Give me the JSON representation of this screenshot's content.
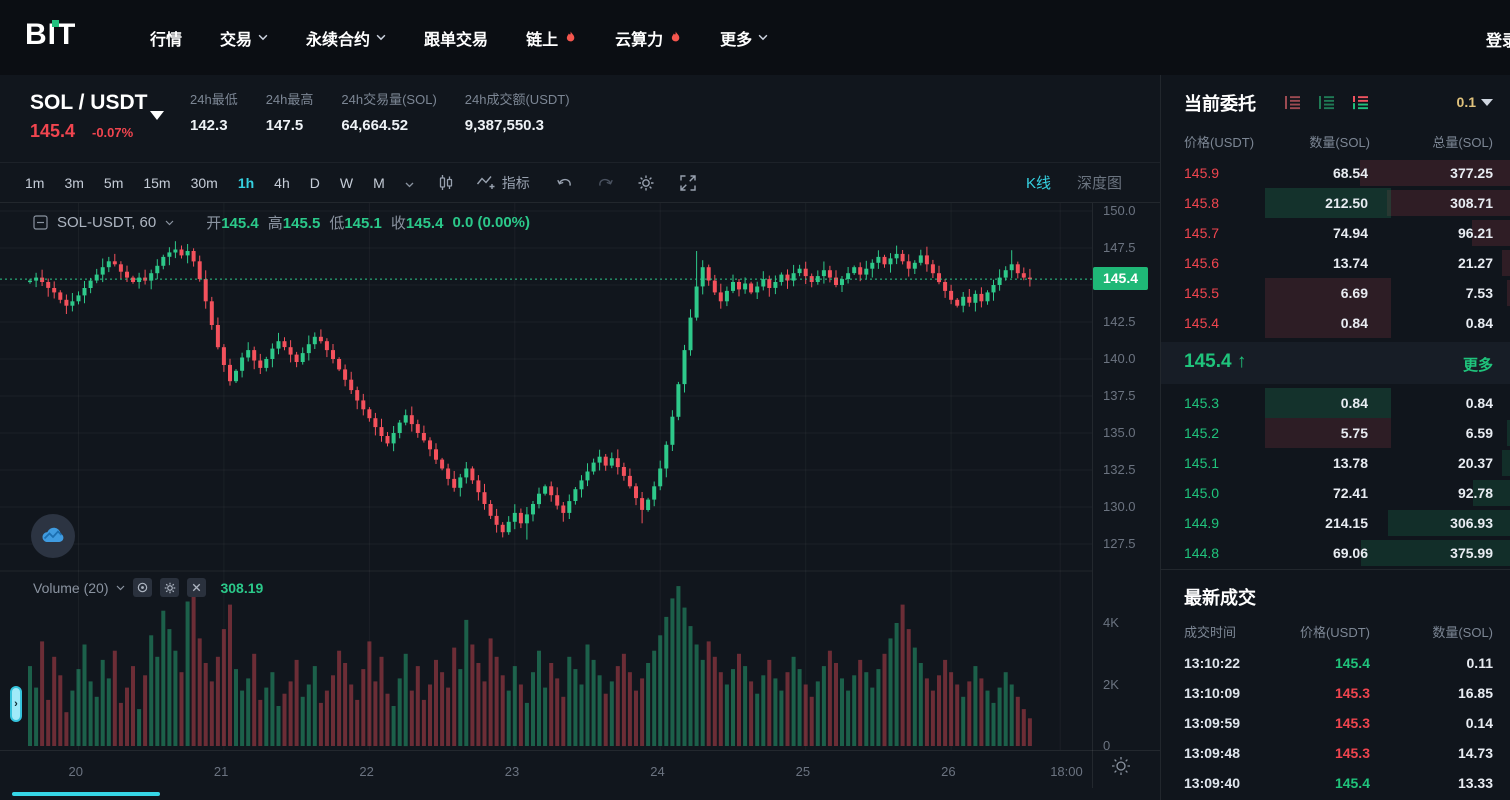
{
  "nav": {
    "logo": "BIT",
    "items": [
      {
        "label": "行情",
        "chevron": false,
        "fire": false
      },
      {
        "label": "交易",
        "chevron": true,
        "fire": false
      },
      {
        "label": "永续合约",
        "chevron": true,
        "fire": false
      },
      {
        "label": "跟单交易",
        "chevron": false,
        "fire": false
      },
      {
        "label": "链上",
        "chevron": false,
        "fire": true
      },
      {
        "label": "云算力",
        "chevron": false,
        "fire": true
      },
      {
        "label": "更多",
        "chevron": true,
        "fire": false
      }
    ],
    "login_label": "登录"
  },
  "header": {
    "pair": "SOL / USDT",
    "price": "145.4",
    "change": "-0.07%",
    "stats": [
      {
        "label": "24h最低",
        "value": "142.3"
      },
      {
        "label": "24h最高",
        "value": "147.5"
      },
      {
        "label": "24h交易量(SOL)",
        "value": "64,664.52"
      },
      {
        "label": "24h成交额(USDT)",
        "value": "9,387,550.3"
      }
    ]
  },
  "toolbar": {
    "timeframes": [
      "1m",
      "3m",
      "5m",
      "15m",
      "30m",
      "1h",
      "4h",
      "D",
      "W",
      "M"
    ],
    "active_timeframe": "1h",
    "indicator_label": "指标",
    "right_tabs": [
      {
        "label": "K线",
        "active": true
      },
      {
        "label": "深度图",
        "active": false
      }
    ]
  },
  "chart": {
    "legend": {
      "symbol": "SOL-USDT, 60",
      "o_label": "开",
      "o": "145.4",
      "h_label": "高",
      "h": "145.5",
      "l_label": "低",
      "l": "145.1",
      "c_label": "收",
      "c": "145.4",
      "change": "0.0 (0.00%)"
    },
    "volume_legend": {
      "label": "Volume (20)",
      "value": "308.19"
    },
    "price_tag": "145.4"
  },
  "chart_data": {
    "type": "candlestick",
    "symbol": "SOL-USDT",
    "interval_minutes": 60,
    "current_price": 145.4,
    "first_open": 145.2,
    "closes": [
      145.3,
      145.5,
      145.2,
      144.8,
      144.5,
      144.0,
      143.6,
      143.9,
      144.3,
      144.8,
      145.3,
      145.7,
      146.2,
      146.6,
      146.4,
      145.9,
      145.5,
      145.2,
      145.5,
      145.3,
      145.8,
      146.3,
      146.9,
      147.2,
      147.4,
      147.0,
      147.3,
      146.6,
      145.4,
      143.9,
      142.3,
      140.8,
      139.6,
      138.5,
      139.2,
      140.1,
      140.6,
      139.9,
      139.4,
      140.0,
      140.7,
      141.2,
      140.8,
      140.3,
      139.8,
      140.4,
      141.0,
      141.5,
      141.2,
      140.6,
      140.0,
      139.3,
      138.6,
      137.9,
      137.2,
      136.6,
      136.0,
      135.4,
      134.8,
      134.3,
      135.0,
      135.7,
      136.2,
      135.6,
      135.0,
      134.5,
      133.9,
      133.2,
      132.6,
      131.9,
      131.3,
      132.0,
      132.6,
      131.8,
      131.0,
      130.2,
      129.4,
      128.8,
      128.3,
      129.0,
      129.6,
      128.9,
      129.5,
      130.2,
      130.9,
      131.4,
      130.8,
      130.1,
      129.6,
      130.4,
      131.2,
      131.8,
      132.4,
      133.0,
      133.4,
      132.8,
      133.3,
      132.7,
      132.1,
      131.4,
      130.6,
      129.8,
      130.5,
      131.4,
      132.6,
      134.2,
      136.1,
      138.3,
      140.6,
      142.8,
      144.9,
      146.2,
      145.3,
      144.5,
      143.9,
      144.6,
      145.2,
      144.7,
      145.1,
      144.5,
      144.9,
      145.4,
      144.8,
      145.2,
      145.7,
      145.3,
      145.8,
      146.1,
      145.6,
      145.2,
      145.6,
      146.0,
      145.5,
      145.0,
      145.4,
      145.8,
      146.2,
      145.7,
      146.1,
      146.5,
      146.9,
      146.4,
      146.8,
      147.1,
      146.6,
      146.1,
      146.5,
      147.0,
      146.4,
      145.8,
      145.2,
      144.6,
      144.0,
      143.6,
      144.2,
      143.8,
      144.4,
      143.9,
      144.5,
      145.0,
      145.5,
      146.0,
      146.4,
      145.8,
      145.5,
      145.4
    ],
    "volumes": [
      2600,
      1900,
      3400,
      1500,
      2900,
      2300,
      1100,
      1800,
      2500,
      3300,
      2100,
      1600,
      2800,
      2200,
      3100,
      1400,
      1900,
      2600,
      1200,
      2300,
      3600,
      2900,
      4400,
      3800,
      3100,
      2400,
      4700,
      5200,
      3500,
      2700,
      2100,
      2900,
      3800,
      4600,
      2500,
      1800,
      2200,
      3000,
      1500,
      1900,
      2400,
      1300,
      1700,
      2100,
      2800,
      1600,
      2000,
      2600,
      1400,
      1800,
      2300,
      3100,
      2700,
      2000,
      1500,
      2500,
      3400,
      2100,
      2900,
      1700,
      1300,
      2200,
      3000,
      1800,
      2600,
      1500,
      2000,
      2800,
      2400,
      1900,
      3200,
      2500,
      4100,
      3300,
      2700,
      2100,
      3500,
      2900,
      2300,
      1800,
      2600,
      2000,
      1400,
      2400,
      3100,
      1900,
      2700,
      2200,
      1600,
      2900,
      2500,
      2000,
      3300,
      2800,
      2300,
      1700,
      2100,
      2600,
      3000,
      2400,
      1800,
      2200,
      2700,
      3100,
      3600,
      4200,
      4800,
      5200,
      4500,
      3900,
      3300,
      2800,
      3400,
      2900,
      2400,
      2000,
      2500,
      3000,
      2600,
      2100,
      1700,
      2300,
      2800,
      2200,
      1800,
      2400,
      2900,
      2500,
      2000,
      1600,
      2100,
      2600,
      3100,
      2700,
      2200,
      1800,
      2300,
      2800,
      2400,
      1900,
      2500,
      3000,
      3500,
      4000,
      4600,
      3800,
      3200,
      2700,
      2200,
      1800,
      2300,
      2800,
      2400,
      2000,
      1600,
      2100,
      2600,
      2200,
      1800,
      1400,
      1900,
      2400,
      2000,
      1600,
      1200,
      900
    ],
    "wick_highs": {
      "110": 147.3,
      "162": 147.35
    },
    "wick_lows": {
      "82": 127.8,
      "101": 128.9
    },
    "price_axis": {
      "min": 127.5,
      "max": 150.0,
      "tick_labels": [
        150.0,
        147.5,
        142.5,
        140.0,
        137.5,
        135.0,
        132.5,
        130.0,
        127.5
      ],
      "grid_values": [
        150.0,
        147.5,
        145.0,
        142.5,
        140.0,
        137.5,
        135.0,
        132.5,
        130.0,
        127.5
      ]
    },
    "volume_axis": {
      "ticks": [
        {
          "label": "4K",
          "v": 4000
        },
        {
          "label": "2K",
          "v": 2000
        },
        {
          "label": "0",
          "v": 0
        }
      ]
    },
    "time_ticks": [
      {
        "label": "20",
        "i": 8
      },
      {
        "label": "21",
        "i": 32
      },
      {
        "label": "22",
        "i": 56
      },
      {
        "label": "23",
        "i": 80
      },
      {
        "label": "24",
        "i": 104
      },
      {
        "label": "25",
        "i": 128
      },
      {
        "label": "26",
        "i": 152
      },
      {
        "label": "18:00",
        "i": 170
      }
    ]
  },
  "orderbook": {
    "title": "当前委托",
    "precision": "0.1",
    "columns": [
      "价格(USDT)",
      "数量(SOL)",
      "总量(SOL)"
    ],
    "asks": [
      {
        "p": "145.9",
        "q": "68.54",
        "t": "377.25",
        "flash": null
      },
      {
        "p": "145.8",
        "q": "212.50",
        "t": "308.71",
        "flash": "green"
      },
      {
        "p": "145.7",
        "q": "74.94",
        "t": "96.21",
        "flash": null
      },
      {
        "p": "145.6",
        "q": "13.74",
        "t": "21.27",
        "flash": null
      },
      {
        "p": "145.5",
        "q": "6.69",
        "t": "7.53",
        "flash": "red"
      },
      {
        "p": "145.4",
        "q": "0.84",
        "t": "0.84",
        "flash": "red"
      }
    ],
    "mid": {
      "price": "145.4",
      "direction": "up",
      "arrow": "↑",
      "more_label": "更多"
    },
    "bids": [
      {
        "p": "145.3",
        "q": "0.84",
        "t": "0.84",
        "flash": "green"
      },
      {
        "p": "145.2",
        "q": "5.75",
        "t": "6.59",
        "flash": "red"
      },
      {
        "p": "145.1",
        "q": "13.78",
        "t": "20.37",
        "flash": null
      },
      {
        "p": "145.0",
        "q": "72.41",
        "t": "92.78",
        "flash": null
      },
      {
        "p": "144.9",
        "q": "214.15",
        "t": "306.93",
        "flash": null
      },
      {
        "p": "144.8",
        "q": "69.06",
        "t": "375.99",
        "flash": null
      }
    ],
    "max_total": 377.25
  },
  "trades": {
    "title": "最新成交",
    "columns": [
      "成交时间",
      "价格(USDT)",
      "数量(SOL)"
    ],
    "rows": [
      {
        "time": "13:10:22",
        "price": "145.4",
        "dir": "up",
        "qty": "0.11"
      },
      {
        "time": "13:10:09",
        "price": "145.3",
        "dir": "down",
        "qty": "16.85"
      },
      {
        "time": "13:09:59",
        "price": "145.3",
        "dir": "down",
        "qty": "0.14"
      },
      {
        "time": "13:09:48",
        "price": "145.3",
        "dir": "down",
        "qty": "14.73"
      },
      {
        "time": "13:09:40",
        "price": "145.4",
        "dir": "up",
        "qty": "13.33"
      }
    ]
  },
  "colors": {
    "up": "#2ec98a",
    "down": "#f4515c",
    "up_text": "#1fc47c",
    "down_text": "#f1454f",
    "accent_cyan": "#35d0e0",
    "tag_green": "#1fb877",
    "fire": "#f4564e"
  }
}
